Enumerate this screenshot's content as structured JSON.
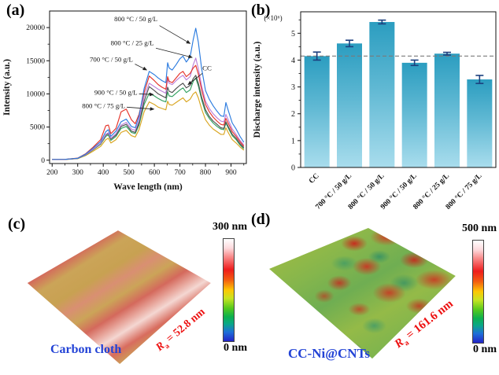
{
  "colors": {
    "axis_black": "#111111",
    "annotation_arrow": "#222222",
    "bar_top": "#2b9dc0",
    "bar_mid": "#5fb8d3",
    "bar_bottom": "#a9dded",
    "error_bar": "#1c3f7e",
    "reference_line": "#7a7a7a",
    "sample_label_blue": "#2343d6",
    "roughness_red": "#ed1111"
  },
  "panel_a": {
    "label": "(a)"
  },
  "panel_b": {
    "label": "(b)"
  },
  "panel_c": {
    "label": "(c)",
    "sample": "Carbon cloth",
    "r_symbol": "R",
    "r_sub": "a",
    "r_value": " = 52.8 nm",
    "scale_max": "300 nm",
    "scale_min": "0 nm"
  },
  "panel_d": {
    "label": "(d)",
    "sample": "CC-Ni@CNTs",
    "r_symbol": "R",
    "r_sub": "a",
    "r_value": " = 161.6 nm",
    "scale_max": "500 nm",
    "scale_min": "0 nm"
  },
  "chart_data": [
    {
      "id": "a",
      "type": "line",
      "xlabel": "Wave length (nm)",
      "ylabel": "Intensity (a.u.)",
      "xlim": [
        190,
        960
      ],
      "ylim": [
        -500,
        22500
      ],
      "x_ticks": [
        200,
        300,
        400,
        500,
        600,
        700,
        800,
        900
      ],
      "y_ticks": [
        0,
        5000,
        10000,
        15000,
        20000
      ],
      "grid": false,
      "x": [
        200,
        250,
        300,
        330,
        360,
        390,
        410,
        420,
        430,
        450,
        470,
        490,
        510,
        525,
        540,
        560,
        580,
        600,
        615,
        630,
        645,
        652,
        658,
        670,
        685,
        700,
        712,
        725,
        740,
        752,
        762,
        772,
        785,
        800,
        815,
        830,
        845,
        860,
        872,
        880,
        890,
        905,
        920,
        935,
        950
      ],
      "series": [
        {
          "name": "800 °C / 75 g/L",
          "color": "#d9a520",
          "values": [
            100,
            110,
            240,
            680,
            1350,
            2100,
            3100,
            3300,
            2600,
            3100,
            4200,
            4500,
            3700,
            3500,
            4600,
            7300,
            8800,
            8400,
            8000,
            7800,
            7600,
            8900,
            8400,
            8300,
            8700,
            9100,
            9400,
            8800,
            9200,
            10000,
            10300,
            9400,
            7700,
            6100,
            5300,
            4700,
            4300,
            3900,
            3900,
            4900,
            4100,
            3100,
            2600,
            2000,
            1500
          ]
        },
        {
          "name": "900 °C / 50 g/L",
          "color": "#31a05f",
          "values": [
            105,
            115,
            260,
            760,
            1550,
            2400,
            3600,
            3800,
            3000,
            3600,
            4800,
            5100,
            4200,
            4000,
            5300,
            8400,
            10100,
            9700,
            9300,
            9000,
            8800,
            10300,
            9700,
            9600,
            10100,
            10600,
            10900,
            10200,
            10600,
            11900,
            12400,
            11200,
            9100,
            7200,
            6300,
            5600,
            5100,
            4700,
            4600,
            5600,
            4800,
            3700,
            3100,
            2300,
            1700
          ]
        },
        {
          "name": "CC",
          "color": "#4f4f4f",
          "values": [
            110,
            115,
            270,
            800,
            1600,
            2500,
            3800,
            4000,
            3200,
            3800,
            5100,
            5400,
            4400,
            4200,
            5600,
            8900,
            11100,
            10500,
            10000,
            9700,
            9400,
            11000,
            10400,
            10200,
            10800,
            11300,
            11600,
            10900,
            11300,
            12300,
            12800,
            11600,
            9500,
            7600,
            6600,
            5900,
            5400,
            4900,
            4800,
            5800,
            5000,
            3900,
            3300,
            2500,
            1900
          ]
        },
        {
          "name": "800 °C / 25 g/L",
          "color": "#bb7fd9",
          "values": [
            110,
            120,
            280,
            820,
            1650,
            2550,
            3900,
            4150,
            3300,
            4000,
            5300,
            5700,
            4700,
            4500,
            6000,
            9600,
            11600,
            11100,
            10700,
            10400,
            10100,
            12300,
            11600,
            11400,
            12000,
            12500,
            12800,
            12100,
            12600,
            14400,
            15400,
            13800,
            11200,
            8900,
            7800,
            7000,
            6400,
            5900,
            5800,
            6900,
            6000,
            4700,
            3900,
            3000,
            2300
          ]
        },
        {
          "name": "700 °C / 50 g/L",
          "color": "#e53229",
          "values": [
            115,
            130,
            320,
            950,
            1950,
            3100,
            5200,
            5300,
            4000,
            4800,
            7300,
            7700,
            6100,
            5500,
            6900,
            10200,
            12700,
            12000,
            11400,
            11000,
            10700,
            12600,
            11900,
            11700,
            12400,
            13100,
            13400,
            12600,
            13100,
            13900,
            14300,
            13000,
            10600,
            8400,
            7300,
            6500,
            5900,
            5400,
            5300,
            6300,
            5500,
            4300,
            3600,
            2800,
            2100
          ]
        },
        {
          "name": "800 °C / 50 g/L",
          "color": "#2b7bdf",
          "values": [
            120,
            130,
            300,
            900,
            1800,
            2800,
            4300,
            4600,
            3600,
            4400,
            5800,
            6200,
            5100,
            4900,
            6600,
            10800,
            13400,
            12900,
            12400,
            12000,
            11700,
            14700,
            13900,
            13600,
            14400,
            15300,
            15700,
            14800,
            15600,
            18200,
            19900,
            17800,
            13800,
            10500,
            9200,
            8200,
            7400,
            6700,
            6600,
            8700,
            7400,
            5600,
            4700,
            3600,
            2700
          ]
        }
      ],
      "annotations": [
        {
          "text": "800 °C / 50 g/L",
          "anchor": "end",
          "label_at": [
            612,
            21300
          ],
          "arrow_from": [
            620,
            20300
          ],
          "arrow_to": [
            740,
            17600
          ]
        },
        {
          "text": "800 °C / 25 g/L",
          "anchor": "end",
          "label_at": [
            598,
            17700
          ],
          "arrow_from": [
            606,
            16900
          ],
          "arrow_to": [
            748,
            15500
          ]
        },
        {
          "text": "700 °C / 50 g/L",
          "anchor": "end",
          "label_at": [
            516,
            15200
          ],
          "arrow_from": [
            524,
            14500
          ],
          "arrow_to": [
            570,
            13600
          ]
        },
        {
          "text": "CC",
          "anchor": "start",
          "label_at": [
            788,
            13900
          ],
          "arrow_from": [
            788,
            13100
          ],
          "arrow_to": [
            732,
            11400
          ]
        },
        {
          "text": "900 °C / 50 g/L",
          "anchor": "end",
          "label_at": [
            534,
            10200
          ],
          "arrow_from": [
            540,
            10000
          ],
          "arrow_to": [
            596,
            9900
          ]
        },
        {
          "text": "800 °C / 75 g/L",
          "anchor": "end",
          "label_at": [
            486,
            8200
          ],
          "arrow_from": [
            492,
            8000
          ],
          "arrow_to": [
            598,
            7700
          ]
        }
      ]
    },
    {
      "id": "b",
      "type": "bar",
      "ylabel": "Discharge intensity (a.u.)",
      "unit_label": "(×10⁶)",
      "categories": [
        "CC",
        "700 °C / 50 g/L",
        "800 °C / 50 g/L",
        "900 °C / 50 g/L",
        "800 °C / 25 g/L",
        "800 °C / 75 g/L"
      ],
      "values": [
        4.15,
        4.62,
        5.42,
        3.9,
        4.24,
        3.28
      ],
      "errors": [
        0.15,
        0.12,
        0.07,
        0.1,
        0.05,
        0.15
      ],
      "reference_line": 4.15,
      "ylim": [
        0,
        5.8
      ],
      "y_ticks": [
        0,
        1,
        2,
        3,
        4,
        5
      ],
      "legend": "none",
      "grid": false
    }
  ]
}
